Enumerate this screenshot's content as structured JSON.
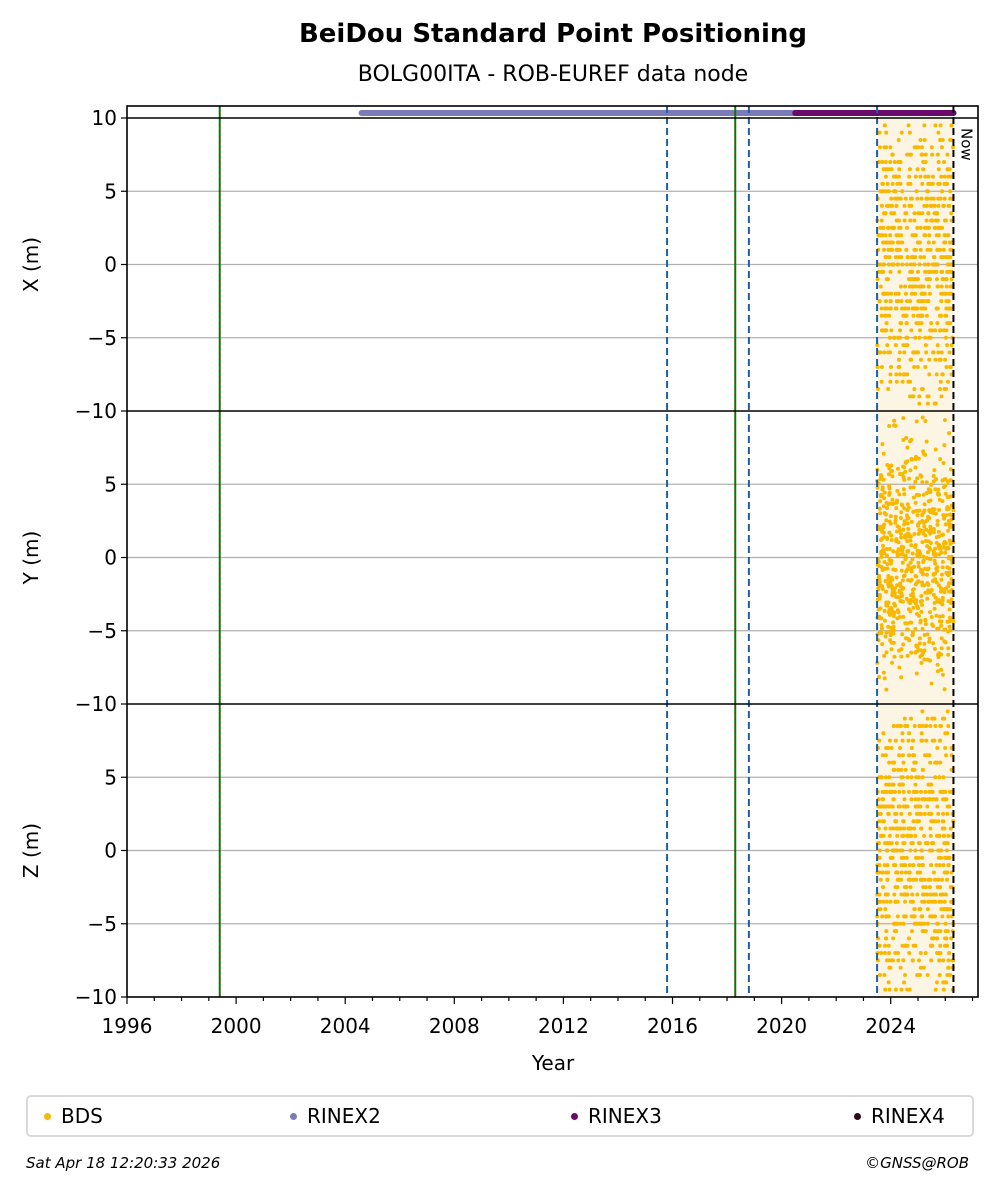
{
  "chart_data": {
    "type": "scatter",
    "title": "BeiDou Standard Point Positioning",
    "subtitle": "BOLG00ITA - ROB-EUREF data node",
    "xlabel": "Year",
    "xlim": [
      1996,
      2027.2
    ],
    "x_ticks": [
      "1996",
      "2000",
      "2004",
      "2008",
      "2012",
      "2016",
      "2020",
      "2024"
    ],
    "panels": [
      {
        "ylabel": "X (m)",
        "ylim": [
          -10,
          10
        ],
        "y_ticks": [
          "10",
          "5",
          "0",
          "−5",
          "−10"
        ],
        "spread": 5.5
      },
      {
        "ylabel": "Y (m)",
        "ylim": [
          -10,
          10
        ],
        "y_ticks": [
          "5",
          "0",
          "−5",
          "−10"
        ],
        "spread": 4.2
      },
      {
        "ylabel": "Z (m)",
        "ylim": [
          -10,
          10
        ],
        "y_ticks": [
          "5",
          "0",
          "−5",
          "−10"
        ],
        "spread": 5.5
      }
    ],
    "series": [
      {
        "name": "BDS",
        "color": "#f9b800",
        "x_range": [
          2023.5,
          2026.3
        ],
        "values_note": ""
      },
      {
        "name": "RINEX2",
        "color": "#7b7bb8",
        "x_range": [
          2004.6,
          2026.3
        ]
      },
      {
        "name": "RINEX3",
        "color": "#6a0a6a",
        "x_range": [
          2020.5,
          2026.3
        ]
      },
      {
        "name": "RINEX4",
        "color": "#2a0a1a",
        "x_range": []
      }
    ],
    "event_lines": [
      {
        "x": 1999.4,
        "style": "green-red",
        "color": "#008000"
      },
      {
        "x": 2015.8,
        "style": "dashed",
        "color": "#1f5fa8"
      },
      {
        "x": 2018.3,
        "style": "green-red",
        "color": "#008000"
      },
      {
        "x": 2018.8,
        "style": "dashed",
        "color": "#1f5fa8"
      },
      {
        "x": 2023.5,
        "style": "dashed",
        "color": "#1f5fa8"
      }
    ],
    "now": {
      "x": 2026.3,
      "label": "Now"
    },
    "shaded_range": [
      2023.5,
      2026.3
    ],
    "grid": true,
    "legend_position": "bottom"
  },
  "legend": [
    "BDS",
    "RINEX2",
    "RINEX3",
    "RINEX4"
  ],
  "footer": {
    "timestamp": "Sat Apr 18 12:20:33 2026",
    "credit": "©GNSS@ROB"
  }
}
